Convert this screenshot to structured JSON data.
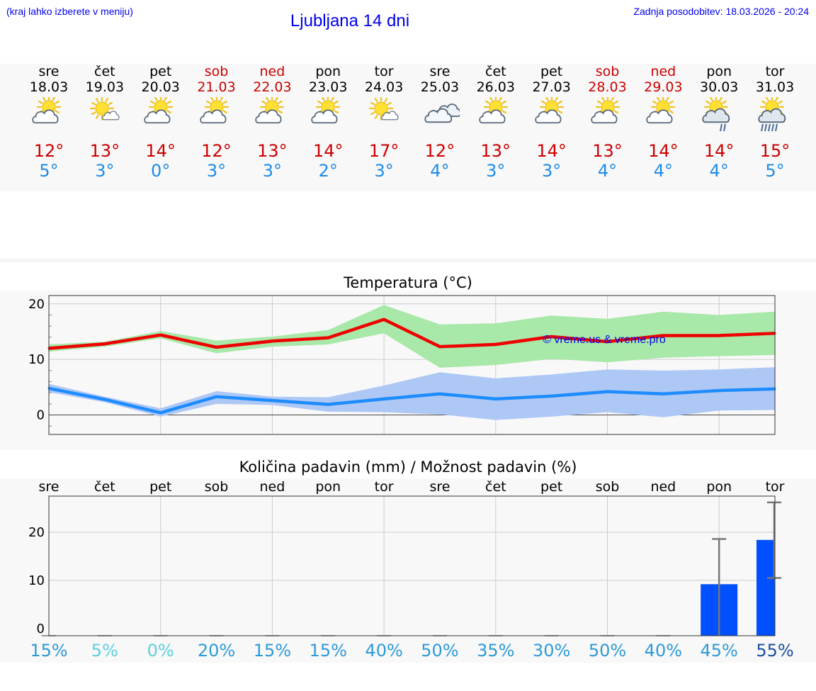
{
  "header": {
    "location_hint": "(kraj lahko izberete v meniju)",
    "title": "Ljubljana 14 dni",
    "last_update": "Zadnja posodobitev: 18.03.2026 - 20:24"
  },
  "days": [
    {
      "name": "sre",
      "date": "18.03",
      "weekend": false,
      "icon": "partly-cloudy-sun-icon",
      "tmax": "12°",
      "tmin": "5°"
    },
    {
      "name": "čet",
      "date": "19.03",
      "weekend": false,
      "icon": "mostly-sunny-icon",
      "tmax": "13°",
      "tmin": "3°"
    },
    {
      "name": "pet",
      "date": "20.03",
      "weekend": false,
      "icon": "partly-cloudy-sun-icon",
      "tmax": "14°",
      "tmin": "0°"
    },
    {
      "name": "sob",
      "date": "21.03",
      "weekend": true,
      "icon": "partly-cloudy-sun-icon",
      "tmax": "12°",
      "tmin": "3°"
    },
    {
      "name": "ned",
      "date": "22.03",
      "weekend": true,
      "icon": "partly-cloudy-sun-icon",
      "tmax": "13°",
      "tmin": "3°"
    },
    {
      "name": "pon",
      "date": "23.03",
      "weekend": false,
      "icon": "partly-cloudy-sun-icon",
      "tmax": "14°",
      "tmin": "2°"
    },
    {
      "name": "tor",
      "date": "24.03",
      "weekend": false,
      "icon": "mostly-sunny-icon",
      "tmax": "17°",
      "tmin": "3°"
    },
    {
      "name": "sre",
      "date": "25.03",
      "weekend": false,
      "icon": "cloudy-icon",
      "tmax": "12°",
      "tmin": "4°"
    },
    {
      "name": "čet",
      "date": "26.03",
      "weekend": false,
      "icon": "partly-cloudy-sun-icon",
      "tmax": "13°",
      "tmin": "3°"
    },
    {
      "name": "pet",
      "date": "27.03",
      "weekend": false,
      "icon": "partly-cloudy-sun-icon",
      "tmax": "14°",
      "tmin": "3°"
    },
    {
      "name": "sob",
      "date": "28.03",
      "weekend": true,
      "icon": "partly-cloudy-sun-icon",
      "tmax": "13°",
      "tmin": "4°"
    },
    {
      "name": "ned",
      "date": "29.03",
      "weekend": true,
      "icon": "partly-cloudy-sun-icon",
      "tmax": "14°",
      "tmin": "4°"
    },
    {
      "name": "pon",
      "date": "30.03",
      "weekend": false,
      "icon": "sun-rain-light-icon",
      "tmax": "14°",
      "tmin": "4°"
    },
    {
      "name": "tor",
      "date": "31.03",
      "weekend": false,
      "icon": "sun-rain-icon",
      "tmax": "15°",
      "tmin": "5°"
    }
  ],
  "chart_data": [
    {
      "type": "line",
      "title": "Temperatura (°C)",
      "ylim": [
        -3.5,
        21.5
      ],
      "yticks": [
        0,
        10,
        20
      ],
      "x": [
        0,
        1,
        2,
        3,
        4,
        5,
        6,
        7,
        8,
        9,
        10,
        11,
        12,
        13
      ],
      "watermark": "© vreme.us & vreme.pro",
      "series": [
        {
          "name": "max",
          "color": "#ee0000",
          "values": [
            12,
            12.8,
            14.4,
            12.2,
            13.3,
            13.9,
            17.2,
            12.3,
            12.7,
            14.1,
            13.2,
            14.3,
            14.3,
            14.7
          ]
        },
        {
          "name": "max_range",
          "color": "#a8e8a8",
          "low": [
            11.4,
            12.3,
            13.8,
            11.1,
            12.3,
            12.7,
            14.7,
            8.5,
            9.0,
            10.1,
            9.5,
            10.3,
            10.6,
            10.8
          ],
          "high": [
            12.7,
            13.2,
            15.1,
            13.4,
            14.1,
            15.3,
            19.8,
            16.3,
            16.5,
            17.9,
            17.3,
            18.6,
            18.0,
            18.6
          ]
        },
        {
          "name": "min",
          "color": "#1e8cff",
          "values": [
            4.8,
            2.8,
            0.4,
            3.3,
            2.6,
            1.9,
            2.9,
            3.8,
            2.9,
            3.4,
            4.2,
            3.8,
            4.4,
            4.7
          ]
        },
        {
          "name": "min_range",
          "color": "#aec8f5",
          "low": [
            4.1,
            2.3,
            -0.3,
            2.0,
            1.8,
            0.6,
            0.5,
            0.1,
            -0.9,
            -0.3,
            0.5,
            -0.4,
            0.8,
            0.9
          ],
          "high": [
            5.6,
            3.3,
            1.2,
            4.3,
            3.3,
            3.2,
            5.3,
            7.7,
            6.6,
            7.3,
            8.2,
            8.0,
            8.2,
            8.6
          ]
        }
      ]
    },
    {
      "type": "bar",
      "title": "Količina padavin (mm) / Možnost padavin (%)",
      "ylim": [
        -1.5,
        27.5
      ],
      "yticks": [
        0,
        10,
        20
      ],
      "categories": [
        "sre",
        "čet",
        "pet",
        "sob",
        "ned",
        "pon",
        "tor",
        "sre",
        "čet",
        "pet",
        "sob",
        "ned",
        "pon",
        "tor"
      ],
      "values": [
        0,
        0,
        0,
        0,
        0,
        0,
        0,
        0,
        0,
        0,
        0,
        0,
        9.2,
        18.4
      ],
      "error_low": [
        0,
        0,
        0,
        0,
        0,
        0,
        0,
        0,
        0,
        0,
        0,
        0,
        -1.5,
        10.5
      ],
      "error_high": [
        0,
        0,
        0,
        0,
        0,
        0,
        0,
        0,
        0,
        0,
        0,
        0,
        18.6,
        26.2
      ],
      "bar_color": "#0050ff",
      "probability": [
        "15%",
        "5%",
        "0%",
        "20%",
        "15%",
        "15%",
        "40%",
        "50%",
        "35%",
        "30%",
        "50%",
        "40%",
        "45%",
        "55%"
      ],
      "probability_colors": [
        "#2e9ad6",
        "#5bd0e0",
        "#5bd0e0",
        "#2e9ad6",
        "#2e9ad6",
        "#2e9ad6",
        "#2e9ad6",
        "#2e9ad6",
        "#2e9ad6",
        "#2e9ad6",
        "#2e9ad6",
        "#2e9ad6",
        "#2e9ad6",
        "#1a4fa0"
      ]
    }
  ]
}
